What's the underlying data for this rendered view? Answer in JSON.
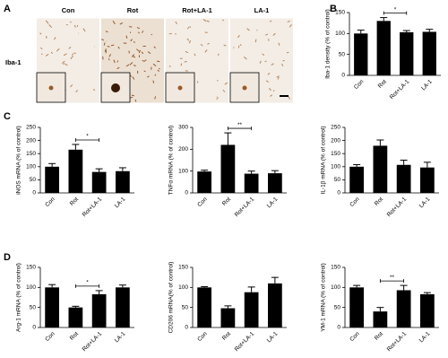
{
  "figure_a": {
    "panel": "A",
    "row_label": "Iba-1",
    "columns": [
      "Con",
      "Rot",
      "Rot+LA-1",
      "LA-1"
    ]
  },
  "chart_data": [
    {
      "type": "bar",
      "panel": "B",
      "y_label": "Iba-1 density (% of control)",
      "categories": [
        "Con",
        "Rot",
        "Rot+LA-1",
        "LA-1"
      ],
      "values": [
        100,
        130,
        103,
        104
      ],
      "errors": [
        8,
        8,
        4,
        6
      ],
      "color": "#000000",
      "ylim": [
        0,
        150
      ],
      "yticks": [
        0,
        50,
        100,
        150
      ],
      "sig": {
        "categories": [
          "Rot",
          "Rot+LA-1"
        ],
        "label": "*"
      }
    },
    {
      "type": "bar",
      "panel": "C",
      "y_label": "iNOS mRNA (% of control)",
      "categories": [
        "Con",
        "Rot",
        "Rot+LA-1",
        "LA-1"
      ],
      "values": [
        100,
        165,
        80,
        83
      ],
      "errors": [
        12,
        20,
        12,
        13
      ],
      "color": "#000000",
      "ylim": [
        0,
        250
      ],
      "yticks": [
        0,
        50,
        100,
        150,
        200,
        250
      ],
      "sig": {
        "categories": [
          "Rot",
          "Rot+LA-1"
        ],
        "label": "*"
      }
    },
    {
      "type": "bar",
      "y_label": "TNFα mRNA (% of control)",
      "categories": [
        "Con",
        "Rot",
        "Rot+LA-1",
        "LA-1"
      ],
      "values": [
        98,
        220,
        88,
        90
      ],
      "errors": [
        6,
        55,
        12,
        12
      ],
      "color": "#000000",
      "ylim": [
        0,
        300
      ],
      "yticks": [
        0,
        100,
        200,
        300
      ],
      "sig": {
        "categories": [
          "Rot",
          "Rot+LA-1"
        ],
        "label": "**"
      }
    },
    {
      "type": "bar",
      "y_label": "IL-1β mRNA (% of control)",
      "categories": [
        "Con",
        "Rot",
        "Rot+LA-1",
        "LA-1"
      ],
      "values": [
        100,
        180,
        107,
        97
      ],
      "errors": [
        8,
        22,
        18,
        20
      ],
      "color": "#000000",
      "ylim": [
        0,
        250
      ],
      "yticks": [
        0,
        50,
        100,
        150,
        200,
        250
      ]
    },
    {
      "type": "bar",
      "panel": "D",
      "y_label": "Arg-1 mRNA (% of control)",
      "categories": [
        "Con",
        "Rot",
        "Rot+LA-1",
        "LA-1"
      ],
      "values": [
        100,
        50,
        83,
        100
      ],
      "errors": [
        7,
        3,
        9,
        6
      ],
      "color": "#000000",
      "ylim": [
        0,
        150
      ],
      "yticks": [
        0,
        50,
        100,
        150
      ],
      "sig": {
        "categories": [
          "Rot",
          "Rot+LA-1"
        ],
        "label": "*"
      }
    },
    {
      "type": "bar",
      "y_label": "CD206 mRNA(% of control)",
      "categories": [
        "Con",
        "Rot",
        "Rot+LA-1",
        "LA-1"
      ],
      "values": [
        100,
        48,
        88,
        110
      ],
      "errors": [
        2,
        6,
        13,
        15
      ],
      "color": "#000000",
      "ylim": [
        0,
        150
      ],
      "yticks": [
        0,
        50,
        100,
        150
      ]
    },
    {
      "type": "bar",
      "y_label": "YM-1 mRNA (% of control)",
      "categories": [
        "Con",
        "Rot",
        "Rot+LA-1",
        "LA-1"
      ],
      "values": [
        100,
        40,
        93,
        83
      ],
      "errors": [
        5,
        10,
        12,
        4
      ],
      "color": "#000000",
      "ylim": [
        0,
        150
      ],
      "yticks": [
        0,
        50,
        100,
        150
      ],
      "sig": {
        "categories": [
          "Rot",
          "Rot+LA-1"
        ],
        "label": "**"
      }
    }
  ]
}
